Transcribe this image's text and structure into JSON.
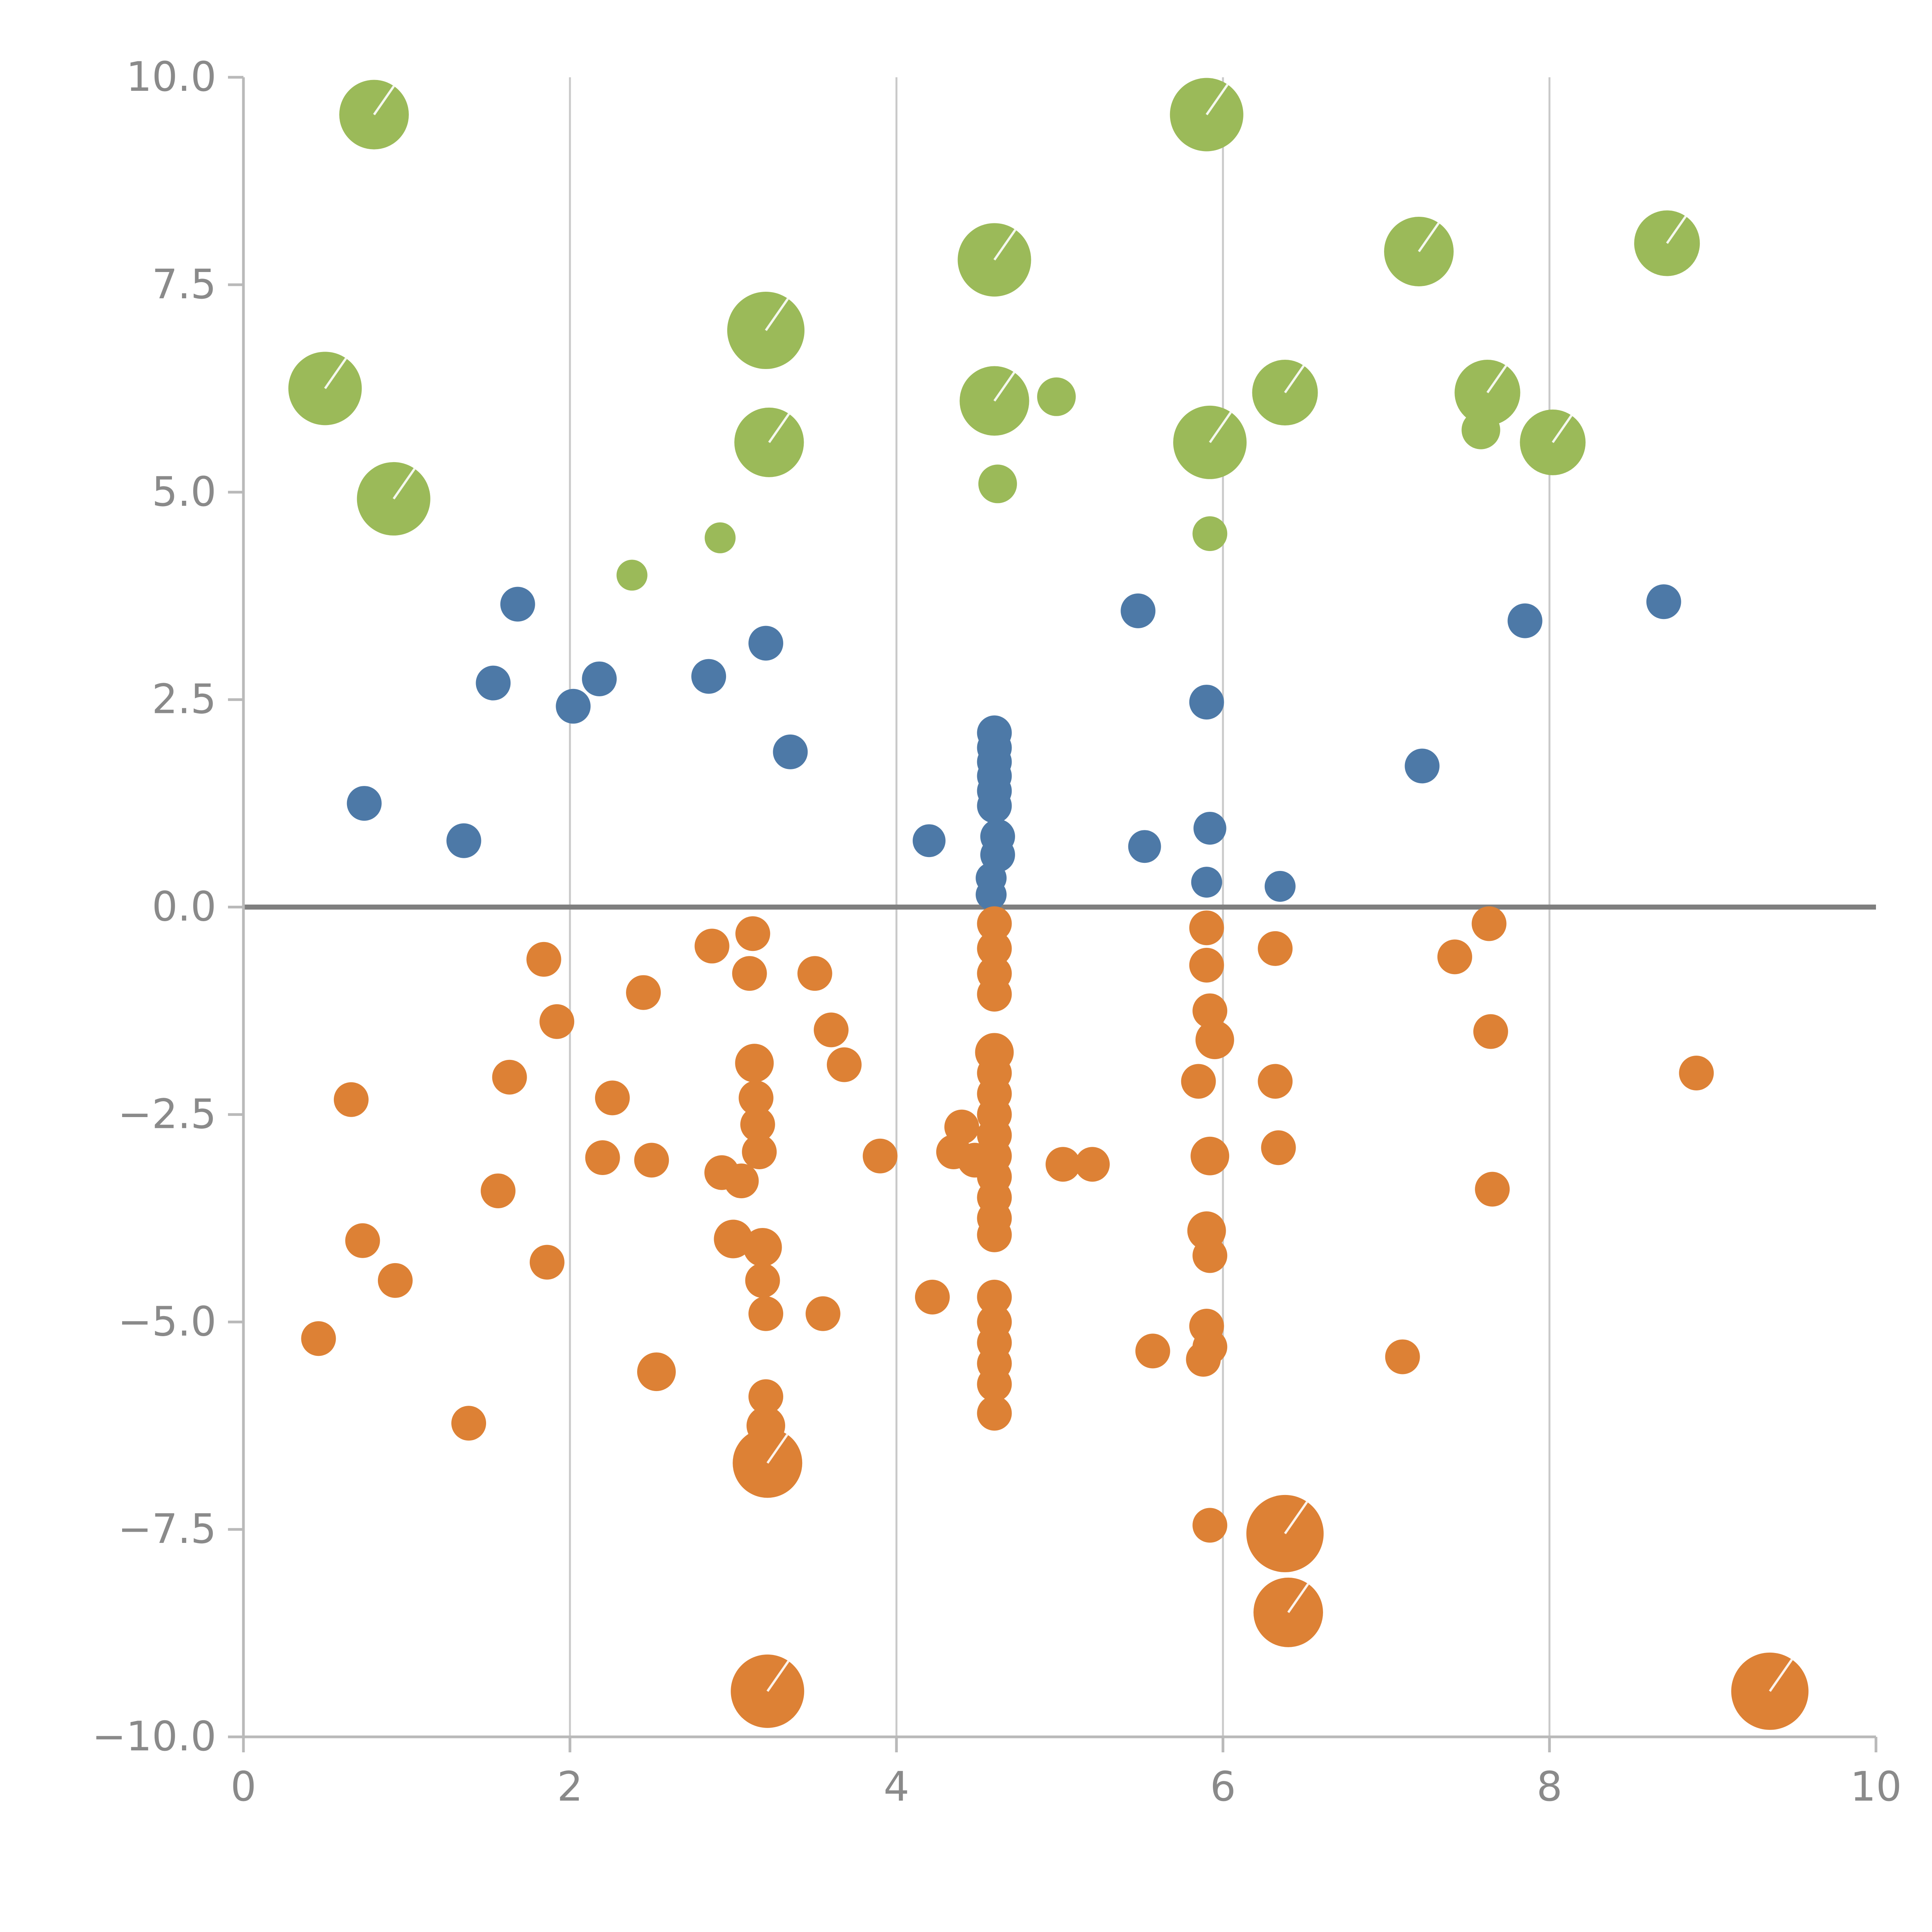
{
  "chart_data": {
    "type": "scatter",
    "title": "",
    "xlabel": "",
    "ylabel": "",
    "xlim": [
      0,
      10
    ],
    "ylim": [
      -10,
      10
    ],
    "xticks": {
      "values": [
        0,
        2,
        4,
        6,
        8,
        10
      ],
      "labels": [
        "0",
        "2",
        "4",
        "6",
        "8",
        "10"
      ]
    },
    "yticks": {
      "values": [
        10,
        7.5,
        5,
        2.5,
        0,
        -2.5,
        -5,
        -7.5,
        -10
      ],
      "labels": [
        "10.0",
        "7.5",
        "5.0",
        "2.5",
        "0.0",
        "−2.5",
        "−5.0",
        "−7.5",
        "−10.0"
      ]
    },
    "grid": {
      "vertical_x": [
        2,
        4,
        6,
        8
      ],
      "color": "#c9c9c9",
      "horizontal": false
    },
    "zero_line": {
      "y": 0,
      "color": "#7f7f7f"
    },
    "axis_color": "#b9b9b9",
    "tick_label_color": "#8a8a8a",
    "legend": "none",
    "series": [
      {
        "name": "green",
        "color": "#9bba59",
        "points": [
          [
            0.8,
            9.55,
            18
          ],
          [
            0.5,
            6.25,
            19
          ],
          [
            0.92,
            4.92,
            19
          ],
          [
            2.38,
            4.0,
            8
          ],
          [
            2.92,
            4.45,
            8
          ],
          [
            3.2,
            6.95,
            20
          ],
          [
            3.22,
            5.6,
            18
          ],
          [
            4.6,
            7.8,
            19
          ],
          [
            4.6,
            6.1,
            18
          ],
          [
            4.62,
            5.1,
            10
          ],
          [
            4.98,
            6.15,
            10
          ],
          [
            5.9,
            9.55,
            19
          ],
          [
            5.92,
            5.6,
            19
          ],
          [
            6.38,
            6.2,
            17
          ],
          [
            5.92,
            4.5,
            9
          ],
          [
            7.2,
            7.9,
            18
          ],
          [
            7.62,
            6.2,
            17
          ],
          [
            7.58,
            5.75,
            10
          ],
          [
            8.02,
            5.6,
            17
          ],
          [
            8.72,
            8.0,
            17
          ]
        ]
      },
      {
        "name": "blue",
        "color": "#4d79a7",
        "points": [
          [
            0.74,
            1.25,
            9
          ],
          [
            1.35,
            0.8,
            9
          ],
          [
            1.53,
            2.7,
            9
          ],
          [
            1.68,
            3.65,
            9
          ],
          [
            2.02,
            2.42,
            9
          ],
          [
            2.18,
            2.75,
            9
          ],
          [
            2.85,
            2.78,
            9
          ],
          [
            3.2,
            3.18,
            9
          ],
          [
            3.35,
            1.87,
            9
          ],
          [
            4.2,
            0.8,
            8.5
          ],
          [
            4.6,
            2.1,
            9
          ],
          [
            4.6,
            1.92,
            9
          ],
          [
            4.6,
            1.75,
            9
          ],
          [
            4.6,
            1.58,
            9
          ],
          [
            4.6,
            1.4,
            9
          ],
          [
            4.6,
            1.22,
            9
          ],
          [
            4.62,
            0.85,
            9
          ],
          [
            4.62,
            0.63,
            9
          ],
          [
            4.58,
            0.35,
            8
          ],
          [
            4.58,
            0.15,
            8
          ],
          [
            5.48,
            3.57,
            9
          ],
          [
            5.52,
            0.73,
            8.5
          ],
          [
            5.9,
            2.47,
            9
          ],
          [
            5.92,
            0.95,
            8.5
          ],
          [
            5.9,
            0.3,
            8
          ],
          [
            6.35,
            0.25,
            8
          ],
          [
            7.22,
            1.7,
            9
          ],
          [
            7.85,
            3.45,
            9
          ],
          [
            8.7,
            3.68,
            9
          ]
        ]
      },
      {
        "name": "orange",
        "color": "#dd8135",
        "points": [
          [
            0.46,
            -5.2,
            9
          ],
          [
            0.66,
            -2.32,
            9
          ],
          [
            0.73,
            -4.02,
            9
          ],
          [
            0.93,
            -4.5,
            9
          ],
          [
            1.38,
            -6.22,
            9
          ],
          [
            1.56,
            -3.42,
            9
          ],
          [
            1.63,
            -2.05,
            9
          ],
          [
            1.84,
            -0.63,
            9
          ],
          [
            1.86,
            -4.28,
            9
          ],
          [
            1.92,
            -1.38,
            9
          ],
          [
            2.2,
            -3.02,
            9
          ],
          [
            2.26,
            -2.3,
            9
          ],
          [
            2.45,
            -1.03,
            9
          ],
          [
            2.5,
            -3.05,
            9
          ],
          [
            2.53,
            -5.6,
            10
          ],
          [
            2.87,
            -0.47,
            9
          ],
          [
            2.93,
            -3.2,
            9
          ],
          [
            3.0,
            -4.0,
            10
          ],
          [
            3.05,
            -3.3,
            9
          ],
          [
            3.1,
            -0.8,
            9
          ],
          [
            3.12,
            -0.32,
            9
          ],
          [
            3.13,
            -1.88,
            10
          ],
          [
            3.14,
            -2.3,
            9
          ],
          [
            3.15,
            -2.62,
            9
          ],
          [
            3.16,
            -2.95,
            9
          ],
          [
            3.18,
            -4.1,
            10
          ],
          [
            3.18,
            -4.5,
            9
          ],
          [
            3.2,
            -4.9,
            9
          ],
          [
            3.2,
            -5.9,
            9
          ],
          [
            3.2,
            -6.25,
            10
          ],
          [
            3.21,
            -6.7,
            18
          ],
          [
            3.21,
            -9.45,
            19
          ],
          [
            3.5,
            -0.8,
            9
          ],
          [
            3.55,
            -4.9,
            9
          ],
          [
            3.6,
            -1.48,
            9
          ],
          [
            3.68,
            -1.9,
            9
          ],
          [
            3.9,
            -3.0,
            9
          ],
          [
            4.22,
            -4.7,
            9
          ],
          [
            4.35,
            -2.95,
            9
          ],
          [
            4.4,
            -2.65,
            9
          ],
          [
            4.48,
            -3.05,
            9
          ],
          [
            4.6,
            -0.2,
            9
          ],
          [
            4.6,
            -0.5,
            9
          ],
          [
            4.6,
            -0.8,
            9
          ],
          [
            4.6,
            -1.05,
            9
          ],
          [
            4.6,
            -1.75,
            10
          ],
          [
            4.6,
            -2.0,
            9
          ],
          [
            4.6,
            -2.25,
            9
          ],
          [
            4.6,
            -2.5,
            9
          ],
          [
            4.6,
            -2.75,
            9
          ],
          [
            4.6,
            -3.0,
            9
          ],
          [
            4.6,
            -3.25,
            9
          ],
          [
            4.6,
            -3.5,
            9
          ],
          [
            4.6,
            -3.75,
            9
          ],
          [
            4.6,
            -3.95,
            9
          ],
          [
            4.6,
            -4.7,
            9
          ],
          [
            4.6,
            -5.0,
            9
          ],
          [
            4.6,
            -5.25,
            9
          ],
          [
            4.6,
            -5.5,
            9
          ],
          [
            4.6,
            -5.75,
            9
          ],
          [
            4.6,
            -6.1,
            9
          ],
          [
            5.02,
            -3.1,
            9
          ],
          [
            5.2,
            -3.1,
            9
          ],
          [
            5.57,
            -5.35,
            9
          ],
          [
            5.9,
            -0.25,
            9
          ],
          [
            5.9,
            -0.7,
            9
          ],
          [
            5.92,
            -1.25,
            9
          ],
          [
            5.95,
            -1.6,
            10
          ],
          [
            5.85,
            -2.1,
            9
          ],
          [
            5.92,
            -3.0,
            10
          ],
          [
            5.9,
            -3.9,
            10
          ],
          [
            5.92,
            -4.2,
            9
          ],
          [
            5.9,
            -5.05,
            9
          ],
          [
            5.92,
            -5.3,
            9
          ],
          [
            5.88,
            -5.45,
            9
          ],
          [
            5.92,
            -7.45,
            9
          ],
          [
            6.32,
            -0.5,
            9
          ],
          [
            6.32,
            -2.1,
            9
          ],
          [
            6.34,
            -2.9,
            9
          ],
          [
            6.38,
            -7.55,
            20
          ],
          [
            6.4,
            -8.5,
            18
          ],
          [
            7.1,
            -5.42,
            9
          ],
          [
            7.42,
            -0.6,
            9
          ],
          [
            7.63,
            -0.2,
            9
          ],
          [
            7.64,
            -1.5,
            9
          ],
          [
            7.65,
            -3.4,
            9
          ],
          [
            8.9,
            -2.0,
            9
          ],
          [
            9.35,
            -9.45,
            20
          ]
        ]
      }
    ]
  }
}
